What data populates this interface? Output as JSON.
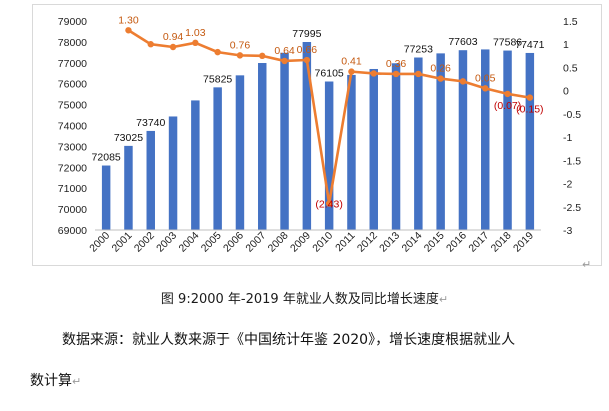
{
  "chart_data": {
    "type": "bar+line",
    "categories": [
      "2000",
      "2001",
      "2002",
      "2003",
      "2004",
      "2005",
      "2006",
      "2007",
      "2008",
      "2009",
      "2010",
      "2011",
      "2012",
      "2013",
      "2014",
      "2015",
      "2016",
      "2017",
      "2018",
      "2019"
    ],
    "series": [
      {
        "name": "",
        "type": "bar",
        "axis": "left",
        "color": "#4472C4",
        "values": [
          72085,
          73025,
          73740,
          74432,
          75200,
          75825,
          76400,
          76990,
          77480,
          77995,
          76105,
          76420,
          76704,
          76977,
          77253,
          77451,
          77603,
          77640,
          77586,
          77471
        ]
      },
      {
        "name": "",
        "type": "line",
        "axis": "right",
        "color": "#ED7D31",
        "values": [
          null,
          1.3,
          1.0,
          0.94,
          1.03,
          0.83,
          0.76,
          0.75,
          0.64,
          0.66,
          -2.43,
          0.41,
          0.37,
          0.36,
          0.36,
          0.26,
          0.2,
          0.05,
          -0.07,
          -0.15
        ]
      }
    ],
    "bar_labels": [
      {
        "index": 0,
        "text": "72085"
      },
      {
        "index": 1,
        "text": "73025"
      },
      {
        "index": 2,
        "text": "73740"
      },
      {
        "index": 5,
        "text": "75825"
      },
      {
        "index": 9,
        "text": "77995"
      },
      {
        "index": 10,
        "text": "76105"
      },
      {
        "index": 14,
        "text": "77253"
      },
      {
        "index": 16,
        "text": "77603"
      },
      {
        "index": 18,
        "text": "77586"
      },
      {
        "index": 19,
        "text": "77471"
      }
    ],
    "line_labels": [
      {
        "index": 1,
        "text": "1.30"
      },
      {
        "index": 3,
        "text": "0.94"
      },
      {
        "index": 4,
        "text": "1.03"
      },
      {
        "index": 6,
        "text": "0.76"
      },
      {
        "index": 8,
        "text": "0.64"
      },
      {
        "index": 9,
        "text": "0.66"
      },
      {
        "index": 10,
        "text": "(2.43)"
      },
      {
        "index": 11,
        "text": "0.41"
      },
      {
        "index": 13,
        "text": "0.36"
      },
      {
        "index": 15,
        "text": "0.26"
      },
      {
        "index": 17,
        "text": "0.05"
      },
      {
        "index": 18,
        "text": "(0.07)"
      },
      {
        "index": 19,
        "text": "(0.15)"
      }
    ],
    "y_left": {
      "min": 69000,
      "max": 79000,
      "step": 1000,
      "ticks": [
        "69000",
        "70000",
        "71000",
        "72000",
        "73000",
        "74000",
        "75000",
        "76000",
        "77000",
        "78000",
        "79000"
      ]
    },
    "y_right": {
      "min": -3,
      "max": 1.5,
      "step": 0.5,
      "ticks": [
        "-3",
        "-2.5",
        "-2",
        "-1.5",
        "-1",
        "-0.5",
        "0",
        "0.5",
        "1",
        "1.5"
      ]
    },
    "title": "",
    "xlabel": "",
    "ylabel": "",
    "grid": false,
    "legend": "none"
  },
  "after_chart_mark": "↵",
  "caption": "图 9:2000 年-2019 年就业人数及同比增长速度",
  "caption_mark": "↵",
  "source_line1": "数据来源：就业人数来源于《中国统计年鉴 2020》，增长速度根据就业人",
  "source_line2": "数计算",
  "source_mark": "↵"
}
